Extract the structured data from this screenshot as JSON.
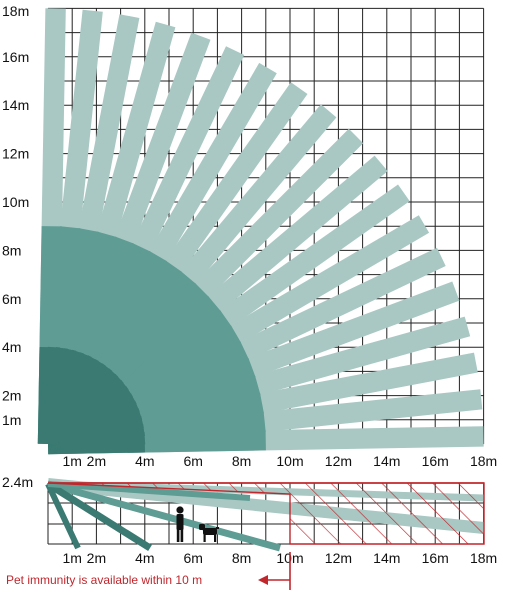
{
  "top_view": {
    "y_labels": [
      "1m",
      "2m",
      "4m",
      "6m",
      "8m",
      "10m",
      "12m",
      "14m",
      "16m",
      "18m"
    ],
    "x_labels": [
      "1m",
      "2m",
      "4m",
      "6m",
      "8m",
      "10m",
      "12m",
      "14m",
      "16m",
      "18m"
    ],
    "beam_count": 19,
    "beam_angle_start_deg": 1,
    "beam_angle_end_deg": 89,
    "beam_reach_m": 18,
    "inner_zone_reach_m": 9,
    "core_zone_reach_m": 4
  },
  "side_view": {
    "height_label": "2.4m",
    "x_labels": [
      "1m",
      "2m",
      "4m",
      "6m",
      "8m",
      "10m",
      "12m",
      "14m",
      "16m",
      "18m"
    ],
    "mount_height_m": 2.4,
    "hatched_zone_start_m": 10,
    "figures": [
      "person-icon",
      "dog-icon"
    ]
  },
  "note": {
    "text": "Pet immunity is available within 10 m"
  },
  "colors": {
    "grid": "#222222",
    "beam_outer": "#a9c8c3",
    "beam_inner": "#5f9c94",
    "beam_core": "#3a7a72",
    "hatch": "#c0272d",
    "note": "#c0272d"
  }
}
